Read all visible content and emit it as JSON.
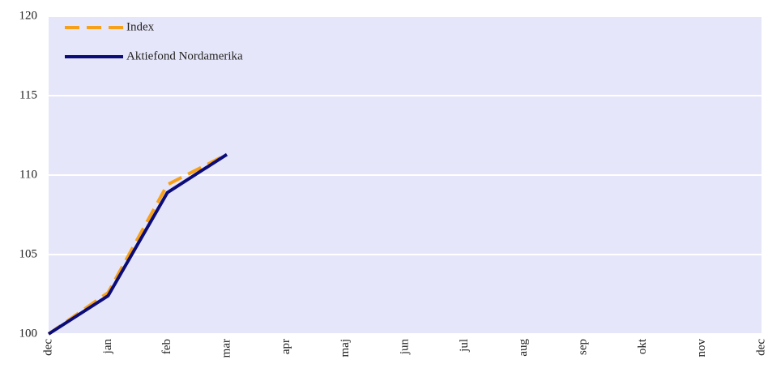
{
  "chart_data": {
    "type": "line",
    "categories": [
      "dec",
      "jan",
      "feb",
      "mar",
      "apr",
      "maj",
      "jun",
      "jul",
      "aug",
      "sep",
      "okt",
      "nov",
      "dec"
    ],
    "series": [
      {
        "name": "Index",
        "color": "#f7a11a",
        "dashed": true,
        "values": [
          100,
          102.6,
          109.4,
          111.3,
          null,
          null,
          null,
          null,
          null,
          null,
          null,
          null,
          null
        ]
      },
      {
        "name": "Aktiefond Nordamerika",
        "color": "#0c0c78",
        "dashed": false,
        "values": [
          100,
          102.4,
          108.9,
          111.3,
          null,
          null,
          null,
          null,
          null,
          null,
          null,
          null,
          null
        ]
      }
    ],
    "ylim": [
      100,
      120
    ],
    "yticks": [
      100,
      105,
      110,
      115,
      120
    ],
    "grid": true,
    "legend": "upper left"
  }
}
